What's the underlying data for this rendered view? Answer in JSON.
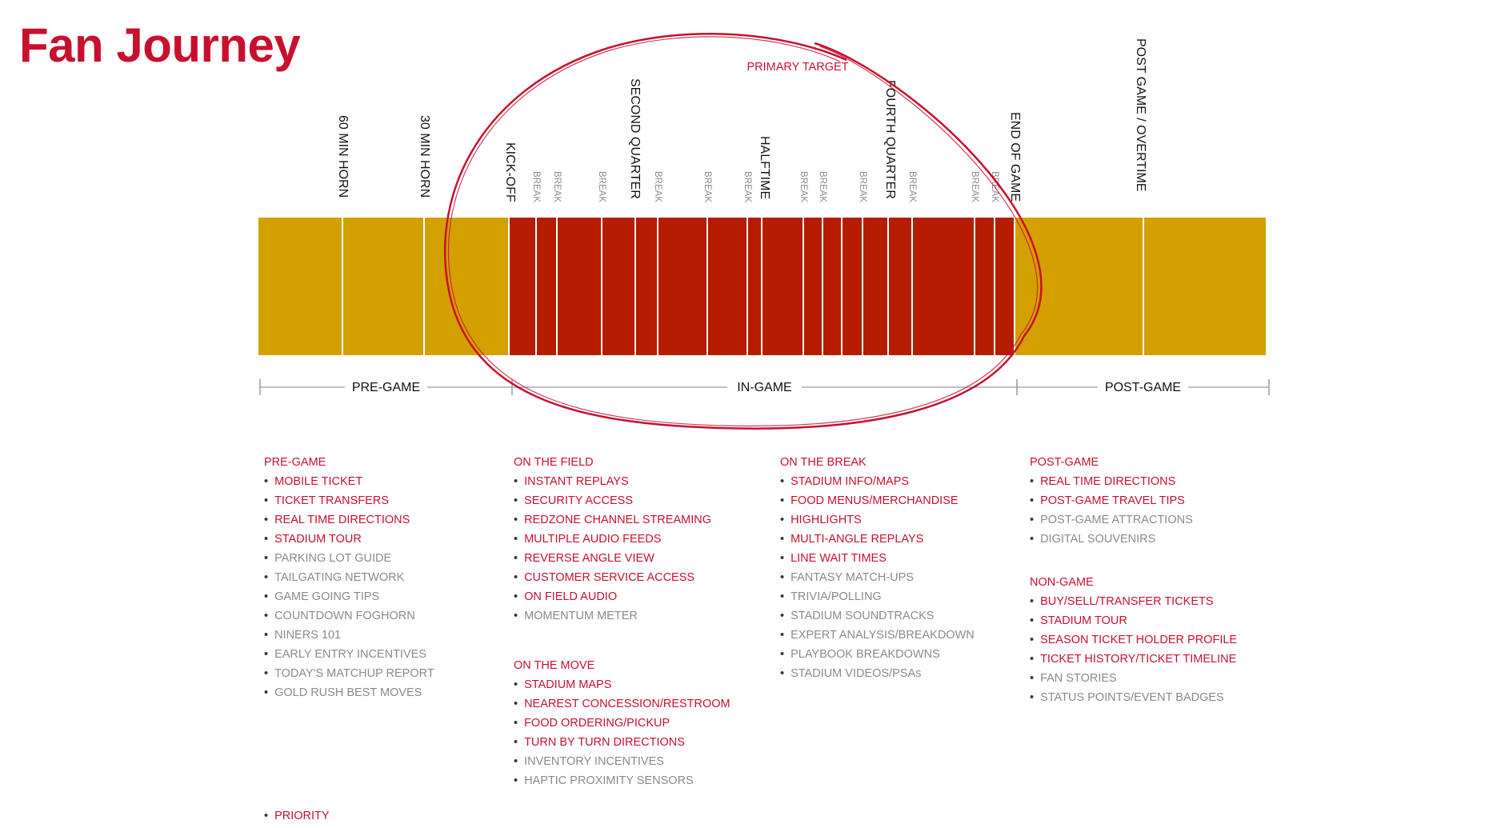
{
  "title": "Fan Journey",
  "colors": {
    "accent": "#c8102e",
    "gold": "#d4a000",
    "red_block": "#b61c00",
    "ellipse": "#c8102e",
    "muted_text": "#8a8a8a"
  },
  "ellipse_label": "PRIMARY TARGET",
  "timeline": {
    "event_labels": [
      "60 MIN HORN",
      "30 MIN HORN",
      "KICK-OFF",
      "SECOND QUARTER",
      "HALFTIME",
      "FOURTH QUARTER",
      "END OF GAME",
      "POST GAME / OVERTIME"
    ],
    "break_label": "BREAK",
    "phases": [
      "PRE-GAME",
      "IN-GAME",
      "POST-GAME"
    ]
  },
  "lists": {
    "pregame": {
      "heading": "PRE-GAME",
      "items": [
        {
          "text": "MOBILE TICKET",
          "priority": true
        },
        {
          "text": "TICKET TRANSFERS",
          "priority": true
        },
        {
          "text": "REAL TIME DIRECTIONS",
          "priority": true
        },
        {
          "text": "STADIUM TOUR",
          "priority": true
        },
        {
          "text": "PARKING LOT GUIDE",
          "priority": false
        },
        {
          "text": "TAILGATING NETWORK",
          "priority": false
        },
        {
          "text": "GAME GOING TIPS",
          "priority": false
        },
        {
          "text": "COUNTDOWN FOGHORN",
          "priority": false
        },
        {
          "text": "NINERS 101",
          "priority": false
        },
        {
          "text": "EARLY ENTRY INCENTIVES",
          "priority": false
        },
        {
          "text": "TODAY'S MATCHUP REPORT",
          "priority": false
        },
        {
          "text": "GOLD RUSH BEST MOVES",
          "priority": false
        }
      ]
    },
    "on_the_field": {
      "heading": "ON THE FIELD",
      "items": [
        {
          "text": "INSTANT REPLAYS",
          "priority": true
        },
        {
          "text": "SECURITY ACCESS",
          "priority": true
        },
        {
          "text": "REDZONE CHANNEL STREAMING",
          "priority": true
        },
        {
          "text": "MULTIPLE AUDIO FEEDS",
          "priority": true
        },
        {
          "text": "REVERSE ANGLE VIEW",
          "priority": true
        },
        {
          "text": "CUSTOMER SERVICE ACCESS",
          "priority": true
        },
        {
          "text": "ON FIELD AUDIO",
          "priority": true
        },
        {
          "text": "MOMENTUM METER",
          "priority": false
        }
      ]
    },
    "on_the_move": {
      "heading": "ON THE MOVE",
      "items": [
        {
          "text": "STADIUM MAPS",
          "priority": true
        },
        {
          "text": "NEAREST CONCESSION/RESTROOM",
          "priority": true
        },
        {
          "text": "FOOD ORDERING/PICKUP",
          "priority": true
        },
        {
          "text": "TURN BY TURN DIRECTIONS",
          "priority": true
        },
        {
          "text": "INVENTORY INCENTIVES",
          "priority": false
        },
        {
          "text": "HAPTIC PROXIMITY SENSORS",
          "priority": false
        }
      ]
    },
    "on_the_break": {
      "heading": "ON THE BREAK",
      "items": [
        {
          "text": "STADIUM INFO/MAPS",
          "priority": true
        },
        {
          "text": "FOOD MENUS/MERCHANDISE",
          "priority": true
        },
        {
          "text": "HIGHLIGHTS",
          "priority": true
        },
        {
          "text": "MULTI-ANGLE REPLAYS",
          "priority": true
        },
        {
          "text": "LINE WAIT TIMES",
          "priority": true
        },
        {
          "text": "FANTASY MATCH-UPS",
          "priority": false
        },
        {
          "text": "TRIVIA/POLLING",
          "priority": false
        },
        {
          "text": "STADIUM SOUNDTRACKS",
          "priority": false
        },
        {
          "text": "EXPERT ANALYSIS/BREAKDOWN",
          "priority": false
        },
        {
          "text": "PLAYBOOK BREAKDOWNS",
          "priority": false
        },
        {
          "text": "STADIUM VIDEOS/PSAs",
          "priority": false
        }
      ]
    },
    "postgame": {
      "heading": "POST-GAME",
      "items": [
        {
          "text": "REAL TIME DIRECTIONS",
          "priority": true
        },
        {
          "text": "POST-GAME  TRAVEL TIPS",
          "priority": true
        },
        {
          "text": "POST-GAME ATTRACTIONS",
          "priority": false
        },
        {
          "text": "DIGITAL SOUVENIRS",
          "priority": false
        }
      ]
    },
    "nongame": {
      "heading": "NON-GAME",
      "items": [
        {
          "text": "BUY/SELL/TRANSFER TICKETS",
          "priority": true
        },
        {
          "text": "STADIUM TOUR",
          "priority": true
        },
        {
          "text": "SEASON TICKET HOLDER PROFILE",
          "priority": true
        },
        {
          "text": "TICKET HISTORY/TICKET TIMELINE",
          "priority": true
        },
        {
          "text": "FAN STORIES",
          "priority": false
        },
        {
          "text": "STATUS POINTS/EVENT BADGES",
          "priority": false
        }
      ]
    }
  },
  "legend": {
    "priority_label": "PRIORITY"
  }
}
